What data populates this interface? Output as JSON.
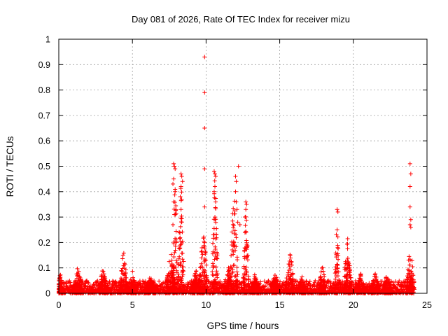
{
  "chart_data": {
    "type": "scatter",
    "title": "Day 081 of 2026, Rate Of TEC Index for receiver mizu",
    "xlabel": "GPS time / hours",
    "ylabel": "ROTI / TECUs",
    "xlim": [
      0,
      25
    ],
    "ylim": [
      0,
      1
    ],
    "grid": true,
    "marker": "+",
    "series_color": "#ff0000",
    "x_ticks": [
      "0",
      "5",
      "10",
      "15",
      "20",
      "25"
    ],
    "y_ticks": [
      "0",
      "0.1",
      "0.2",
      "0.3",
      "0.4",
      "0.5",
      "0.6",
      "0.7",
      "0.8",
      "0.9",
      "1"
    ],
    "baseline": {
      "x_start": 0,
      "x_end": 24,
      "mean": 0.02,
      "max": 0.05
    },
    "bursts": [
      {
        "x": 0.1,
        "peak": 0.08,
        "width": 0.2
      },
      {
        "x": 1.3,
        "peak": 0.11,
        "width": 0.3
      },
      {
        "x": 3.0,
        "peak": 0.1,
        "width": 0.3
      },
      {
        "x": 4.4,
        "peak": 0.18,
        "width": 0.25
      },
      {
        "x": 5.0,
        "peak": 0.09,
        "width": 0.3
      },
      {
        "x": 6.2,
        "peak": 0.07,
        "width": 0.4
      },
      {
        "x": 7.6,
        "peak": 0.18,
        "width": 0.3
      },
      {
        "x": 7.9,
        "peak": 0.52,
        "width": 0.15
      },
      {
        "x": 8.3,
        "peak": 0.48,
        "width": 0.2
      },
      {
        "x": 9.3,
        "peak": 0.1,
        "width": 0.3
      },
      {
        "x": 9.8,
        "peak": 0.28,
        "width": 0.3
      },
      {
        "x": 10.6,
        "peak": 0.48,
        "width": 0.2
      },
      {
        "x": 11.5,
        "peak": 0.11,
        "width": 0.3
      },
      {
        "x": 11.9,
        "peak": 0.46,
        "width": 0.25
      },
      {
        "x": 12.7,
        "peak": 0.35,
        "width": 0.2
      },
      {
        "x": 13.3,
        "peak": 0.08,
        "width": 0.3
      },
      {
        "x": 14.7,
        "peak": 0.09,
        "width": 0.3
      },
      {
        "x": 15.7,
        "peak": 0.17,
        "width": 0.3
      },
      {
        "x": 16.5,
        "peak": 0.08,
        "width": 0.3
      },
      {
        "x": 17.9,
        "peak": 0.12,
        "width": 0.25
      },
      {
        "x": 18.9,
        "peak": 0.33,
        "width": 0.15
      },
      {
        "x": 19.6,
        "peak": 0.23,
        "width": 0.25
      },
      {
        "x": 20.5,
        "peak": 0.08,
        "width": 0.3
      },
      {
        "x": 21.5,
        "peak": 0.09,
        "width": 0.3
      },
      {
        "x": 22.3,
        "peak": 0.08,
        "width": 0.3
      },
      {
        "x": 23.8,
        "peak": 0.18,
        "width": 0.2
      },
      {
        "x": 24.0,
        "peak": 0.14,
        "width": 0.15
      }
    ],
    "outliers": [
      {
        "x": 9.9,
        "y": 0.93
      },
      {
        "x": 9.9,
        "y": 0.79
      },
      {
        "x": 9.9,
        "y": 0.65
      },
      {
        "x": 9.9,
        "y": 0.49
      },
      {
        "x": 9.9,
        "y": 0.34
      },
      {
        "x": 7.8,
        "y": 0.51
      },
      {
        "x": 7.85,
        "y": 0.5
      },
      {
        "x": 7.9,
        "y": 0.49
      },
      {
        "x": 7.8,
        "y": 0.45
      },
      {
        "x": 7.75,
        "y": 0.43
      },
      {
        "x": 7.9,
        "y": 0.4
      },
      {
        "x": 7.8,
        "y": 0.36
      },
      {
        "x": 7.85,
        "y": 0.31
      },
      {
        "x": 7.75,
        "y": 0.27
      },
      {
        "x": 8.3,
        "y": 0.47
      },
      {
        "x": 8.35,
        "y": 0.46
      },
      {
        "x": 8.4,
        "y": 0.44
      },
      {
        "x": 8.3,
        "y": 0.42
      },
      {
        "x": 8.25,
        "y": 0.38
      },
      {
        "x": 8.3,
        "y": 0.33
      },
      {
        "x": 8.35,
        "y": 0.28
      },
      {
        "x": 10.55,
        "y": 0.48
      },
      {
        "x": 10.6,
        "y": 0.47
      },
      {
        "x": 10.65,
        "y": 0.46
      },
      {
        "x": 10.6,
        "y": 0.42
      },
      {
        "x": 10.55,
        "y": 0.4
      },
      {
        "x": 10.65,
        "y": 0.36
      },
      {
        "x": 10.6,
        "y": 0.3
      },
      {
        "x": 12.2,
        "y": 0.5
      },
      {
        "x": 12.0,
        "y": 0.46
      },
      {
        "x": 12.05,
        "y": 0.44
      },
      {
        "x": 12.0,
        "y": 0.4
      },
      {
        "x": 12.05,
        "y": 0.36
      },
      {
        "x": 12.1,
        "y": 0.33
      },
      {
        "x": 12.15,
        "y": 0.28
      },
      {
        "x": 12.3,
        "y": 0.27
      },
      {
        "x": 12.7,
        "y": 0.36
      },
      {
        "x": 12.75,
        "y": 0.35
      },
      {
        "x": 12.7,
        "y": 0.33
      },
      {
        "x": 12.65,
        "y": 0.3
      },
      {
        "x": 18.9,
        "y": 0.33
      },
      {
        "x": 18.95,
        "y": 0.32
      },
      {
        "x": 18.9,
        "y": 0.25
      },
      {
        "x": 23.85,
        "y": 0.51
      },
      {
        "x": 23.9,
        "y": 0.47
      },
      {
        "x": 23.85,
        "y": 0.42
      },
      {
        "x": 23.85,
        "y": 0.34
      },
      {
        "x": 23.9,
        "y": 0.29
      },
      {
        "x": 23.85,
        "y": 0.27
      },
      {
        "x": 23.9,
        "y": 0.26
      }
    ]
  }
}
